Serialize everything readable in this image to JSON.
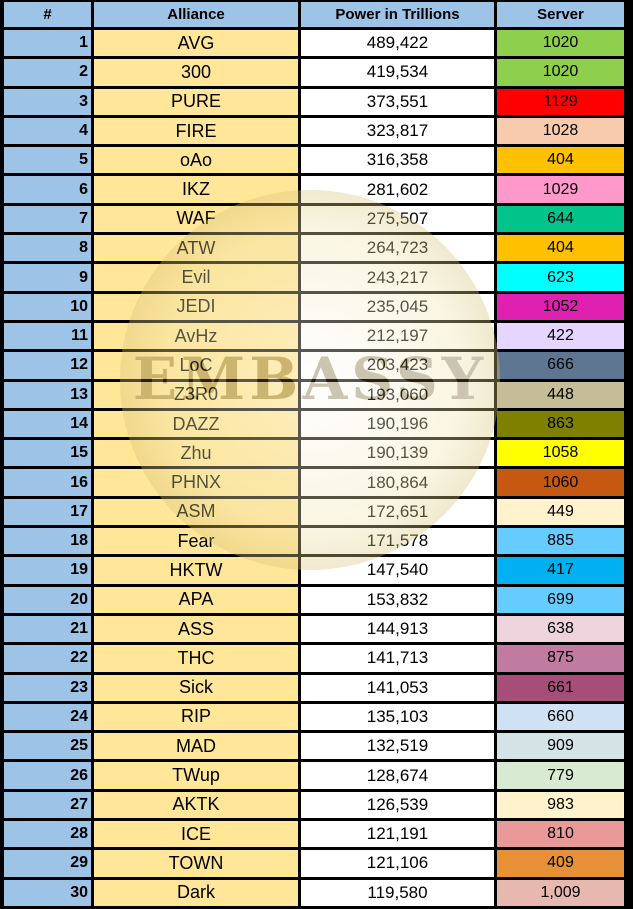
{
  "headers": [
    "#",
    "Alliance",
    "Power in Trillions",
    "Server"
  ],
  "watermark": "EMBASSY",
  "rows": [
    {
      "rank": "1",
      "alliance": "AVG",
      "power": "489,422",
      "server": "1020",
      "color": "#8ed04d"
    },
    {
      "rank": "2",
      "alliance": "300",
      "power": "419,534",
      "server": "1020",
      "color": "#8ed04d"
    },
    {
      "rank": "3",
      "alliance": "PURE",
      "power": "373,551",
      "server": "1129",
      "color": "#ff0000"
    },
    {
      "rank": "4",
      "alliance": "FIRE",
      "power": "323,817",
      "server": "1028",
      "color": "#f8cbad"
    },
    {
      "rank": "5",
      "alliance": "oAo",
      "power": "316,358",
      "server": "404",
      "color": "#ffc000"
    },
    {
      "rank": "6",
      "alliance": "IKZ",
      "power": "281,602",
      "server": "1029",
      "color": "#ff99cc"
    },
    {
      "rank": "7",
      "alliance": "WAF",
      "power": "275,507",
      "server": "644",
      "color": "#00c48a"
    },
    {
      "rank": "8",
      "alliance": "ATW",
      "power": "264,723",
      "server": "404",
      "color": "#ffc000"
    },
    {
      "rank": "9",
      "alliance": "Evil",
      "power": "243,217",
      "server": "623",
      "color": "#00ffff"
    },
    {
      "rank": "10",
      "alliance": "JEDI",
      "power": "235,045",
      "server": "1052",
      "color": "#e020b0"
    },
    {
      "rank": "11",
      "alliance": "AvHz",
      "power": "212,197",
      "server": "422",
      "color": "#e6d6ff"
    },
    {
      "rank": "12",
      "alliance": "LoC",
      "power": "203,423",
      "server": "666",
      "color": "#5f7693"
    },
    {
      "rank": "13",
      "alliance": "Z3R0",
      "power": "193,060",
      "server": "448",
      "color": "#c4bd97"
    },
    {
      "rank": "14",
      "alliance": "DAZZ",
      "power": "190,196",
      "server": "863",
      "color": "#808000"
    },
    {
      "rank": "15",
      "alliance": "Zhu",
      "power": "190,139",
      "server": "1058",
      "color": "#ffff00"
    },
    {
      "rank": "16",
      "alliance": "PHNX",
      "power": "180,864",
      "server": "1060",
      "color": "#c65911"
    },
    {
      "rank": "17",
      "alliance": "ASM",
      "power": "172,651",
      "server": "449",
      "color": "#fff2cc"
    },
    {
      "rank": "18",
      "alliance": "Fear",
      "power": "171,578",
      "server": "885",
      "color": "#66ccff"
    },
    {
      "rank": "19",
      "alliance": "HKTW",
      "power": "147,540",
      "server": "417",
      "color": "#00b0f0"
    },
    {
      "rank": "20",
      "alliance": "APA",
      "power": "153,832",
      "server": "699",
      "color": "#66ccff"
    },
    {
      "rank": "21",
      "alliance": "ASS",
      "power": "144,913",
      "server": "638",
      "color": "#ecd3dc"
    },
    {
      "rank": "22",
      "alliance": "THC",
      "power": "141,713",
      "server": "875",
      "color": "#c27ba0"
    },
    {
      "rank": "23",
      "alliance": "Sick",
      "power": "141,053",
      "server": "661",
      "color": "#a64d79"
    },
    {
      "rank": "24",
      "alliance": "RIP",
      "power": "135,103",
      "server": "660",
      "color": "#cfe2f3"
    },
    {
      "rank": "25",
      "alliance": "MAD",
      "power": "132,519",
      "server": "909",
      "color": "#d4e3e6"
    },
    {
      "rank": "26",
      "alliance": "TWup",
      "power": "128,674",
      "server": "779",
      "color": "#d9ead3"
    },
    {
      "rank": "27",
      "alliance": "AKTK",
      "power": "126,539",
      "server": "983",
      "color": "#fff2cc"
    },
    {
      "rank": "28",
      "alliance": "ICE",
      "power": "121,191",
      "server": "810",
      "color": "#ea9999"
    },
    {
      "rank": "29",
      "alliance": "TOWN",
      "power": "121,106",
      "server": "409",
      "color": "#e69138"
    },
    {
      "rank": "30",
      "alliance": "Dark",
      "power": "119,580",
      "server": "1,009",
      "color": "#e6b8af"
    }
  ]
}
